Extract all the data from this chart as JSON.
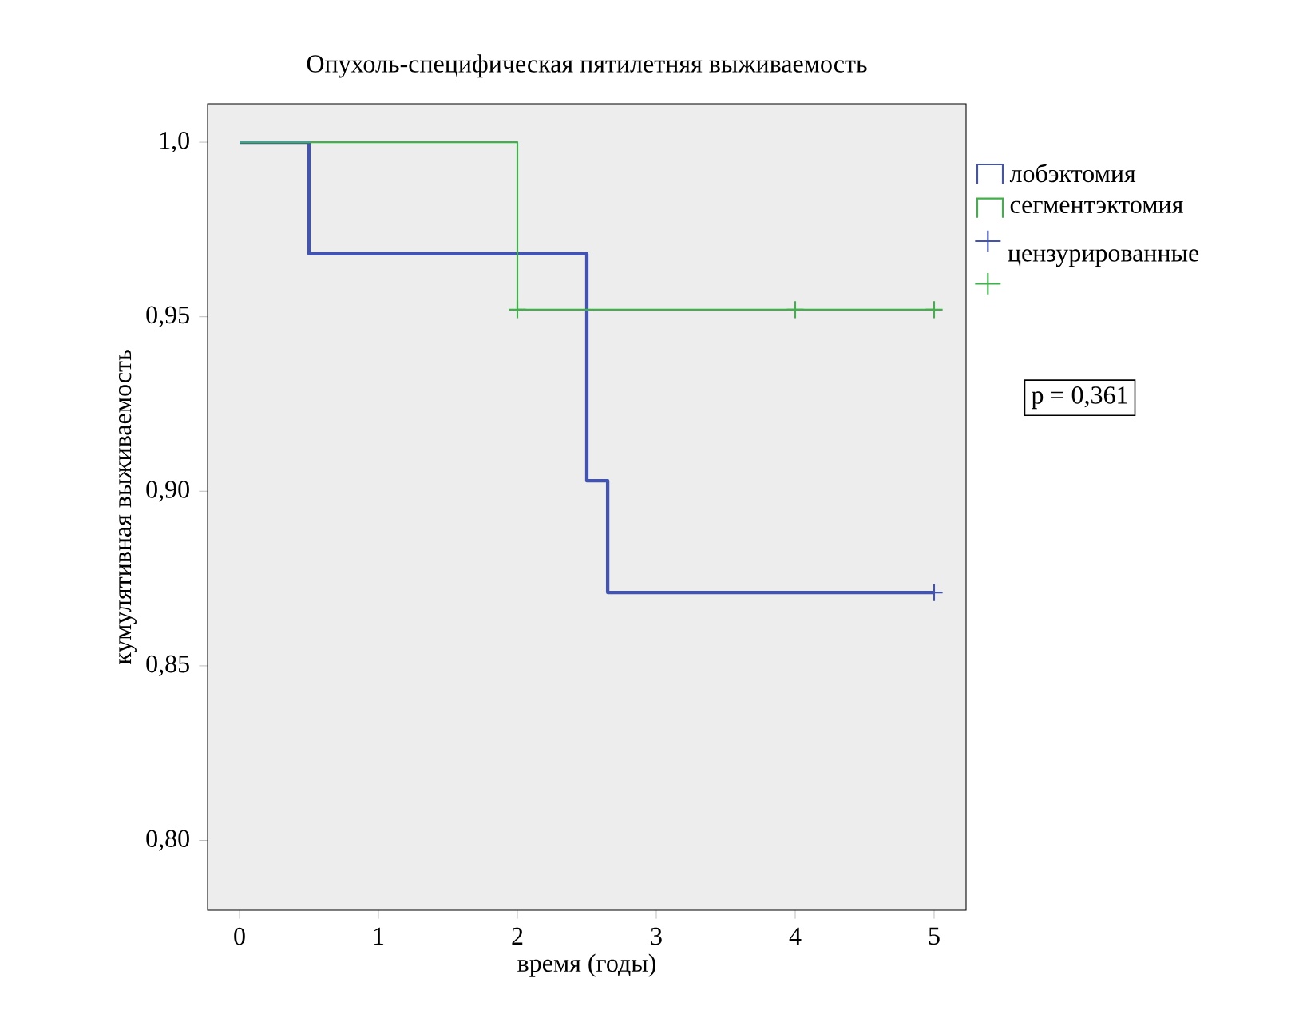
{
  "chart_data": {
    "type": "step",
    "title": "Опухоль-специфическая пятилетняя выживаемость",
    "xlabel": "время (годы)",
    "ylabel": "кумулятивная выживаемость",
    "xlim": [
      -0.23,
      5.23
    ],
    "ylim": [
      0.78,
      1.011
    ],
    "xticks": [
      0,
      1,
      2,
      3,
      4,
      5
    ],
    "yticks": [
      {
        "value": 0.8,
        "label": "0,80"
      },
      {
        "value": 0.85,
        "label": "0,85"
      },
      {
        "value": 0.9,
        "label": "0,90"
      },
      {
        "value": 0.95,
        "label": "0,95"
      },
      {
        "value": 1.0,
        "label": "1,0"
      }
    ],
    "grid": false,
    "legend": "right",
    "marker": "none",
    "series": [
      {
        "name": "лобэктомия",
        "color": "#4353b0",
        "x": [
          0,
          0.5,
          2.5,
          2.65,
          5
        ],
        "values": [
          1.0,
          0.968,
          0.903,
          0.871,
          0.871
        ]
      },
      {
        "name": "сегментэктомия",
        "color": "#3fb04a",
        "x": [
          0,
          2,
          5
        ],
        "values": [
          1.0,
          0.952,
          0.952
        ]
      },
      {
        "name": "цензурированные",
        "type": "scatter",
        "marker": "cross",
        "color": "#4353b0",
        "x": [
          5
        ],
        "values": [
          0.871
        ]
      },
      {
        "type": "scatter",
        "marker": "cross",
        "color": "#3fb04a",
        "x": [
          2,
          4,
          5
        ],
        "values": [
          0.952,
          0.952,
          0.952
        ]
      }
    ],
    "annotations": [
      "p = 0,361"
    ]
  }
}
